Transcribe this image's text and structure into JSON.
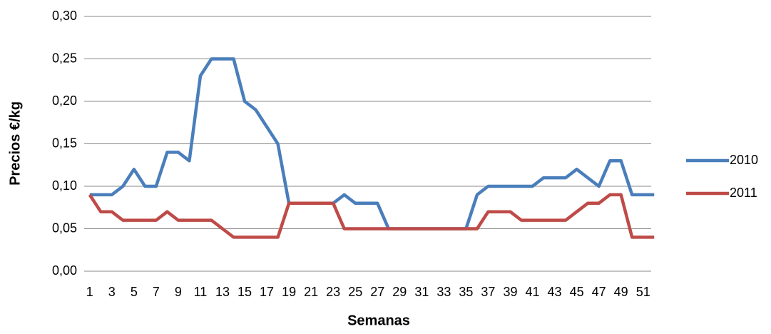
{
  "chart_data": {
    "type": "line",
    "x_label": "Semanas",
    "y_label": "Precios €/kg",
    "categories": [
      1,
      null,
      3,
      null,
      5,
      null,
      7,
      null,
      9,
      null,
      11,
      null,
      13,
      null,
      15,
      null,
      17,
      null,
      19,
      null,
      21,
      null,
      23,
      null,
      25,
      null,
      27,
      null,
      29,
      null,
      31,
      null,
      33,
      null,
      35,
      null,
      37,
      null,
      39,
      null,
      41,
      null,
      43,
      null,
      45,
      null,
      47,
      null,
      49,
      null,
      51,
      null
    ],
    "series": [
      {
        "name": "2010",
        "color": "#4a7ebb",
        "values": [
          0.09,
          0.09,
          0.09,
          0.1,
          0.12,
          0.1,
          0.1,
          0.14,
          0.14,
          0.13,
          0.23,
          0.25,
          0.25,
          0.25,
          0.2,
          0.19,
          0.17,
          0.15,
          0.08,
          0.08,
          0.08,
          0.08,
          0.08,
          0.09,
          0.08,
          0.08,
          0.08,
          0.05,
          0.05,
          0.05,
          0.05,
          0.05,
          0.05,
          0.05,
          0.05,
          0.09,
          0.1,
          0.1,
          0.1,
          0.1,
          0.1,
          0.11,
          0.11,
          0.11,
          0.12,
          0.11,
          0.1,
          0.13,
          0.13,
          0.09,
          0.09,
          0.09
        ]
      },
      {
        "name": "2011",
        "color": "#be4b48",
        "values": [
          0.09,
          0.07,
          0.07,
          0.06,
          0.06,
          0.06,
          0.06,
          0.07,
          0.06,
          0.06,
          0.06,
          0.06,
          0.05,
          0.04,
          0.04,
          0.04,
          0.04,
          0.04,
          0.08,
          0.08,
          0.08,
          0.08,
          0.08,
          0.05,
          0.05,
          0.05,
          0.05,
          0.05,
          0.05,
          0.05,
          0.05,
          0.05,
          0.05,
          0.05,
          0.05,
          0.05,
          0.07,
          0.07,
          0.07,
          0.06,
          0.06,
          0.06,
          0.06,
          0.06,
          0.07,
          0.08,
          0.08,
          0.09,
          0.09,
          0.04,
          0.04,
          0.04
        ]
      }
    ],
    "ylim": [
      0,
      0.3
    ],
    "yticks": [
      {
        "value": 0,
        "label": "0,00"
      },
      {
        "value": 0.05,
        "label": "0,05"
      },
      {
        "value": 0.1,
        "label": "0,10"
      },
      {
        "value": 0.15,
        "label": "0,15"
      },
      {
        "value": 0.2,
        "label": "0,20"
      },
      {
        "value": 0.25,
        "label": "0,25"
      },
      {
        "value": 0.3,
        "label": "0,30"
      }
    ],
    "grid": true,
    "legend": "right"
  }
}
